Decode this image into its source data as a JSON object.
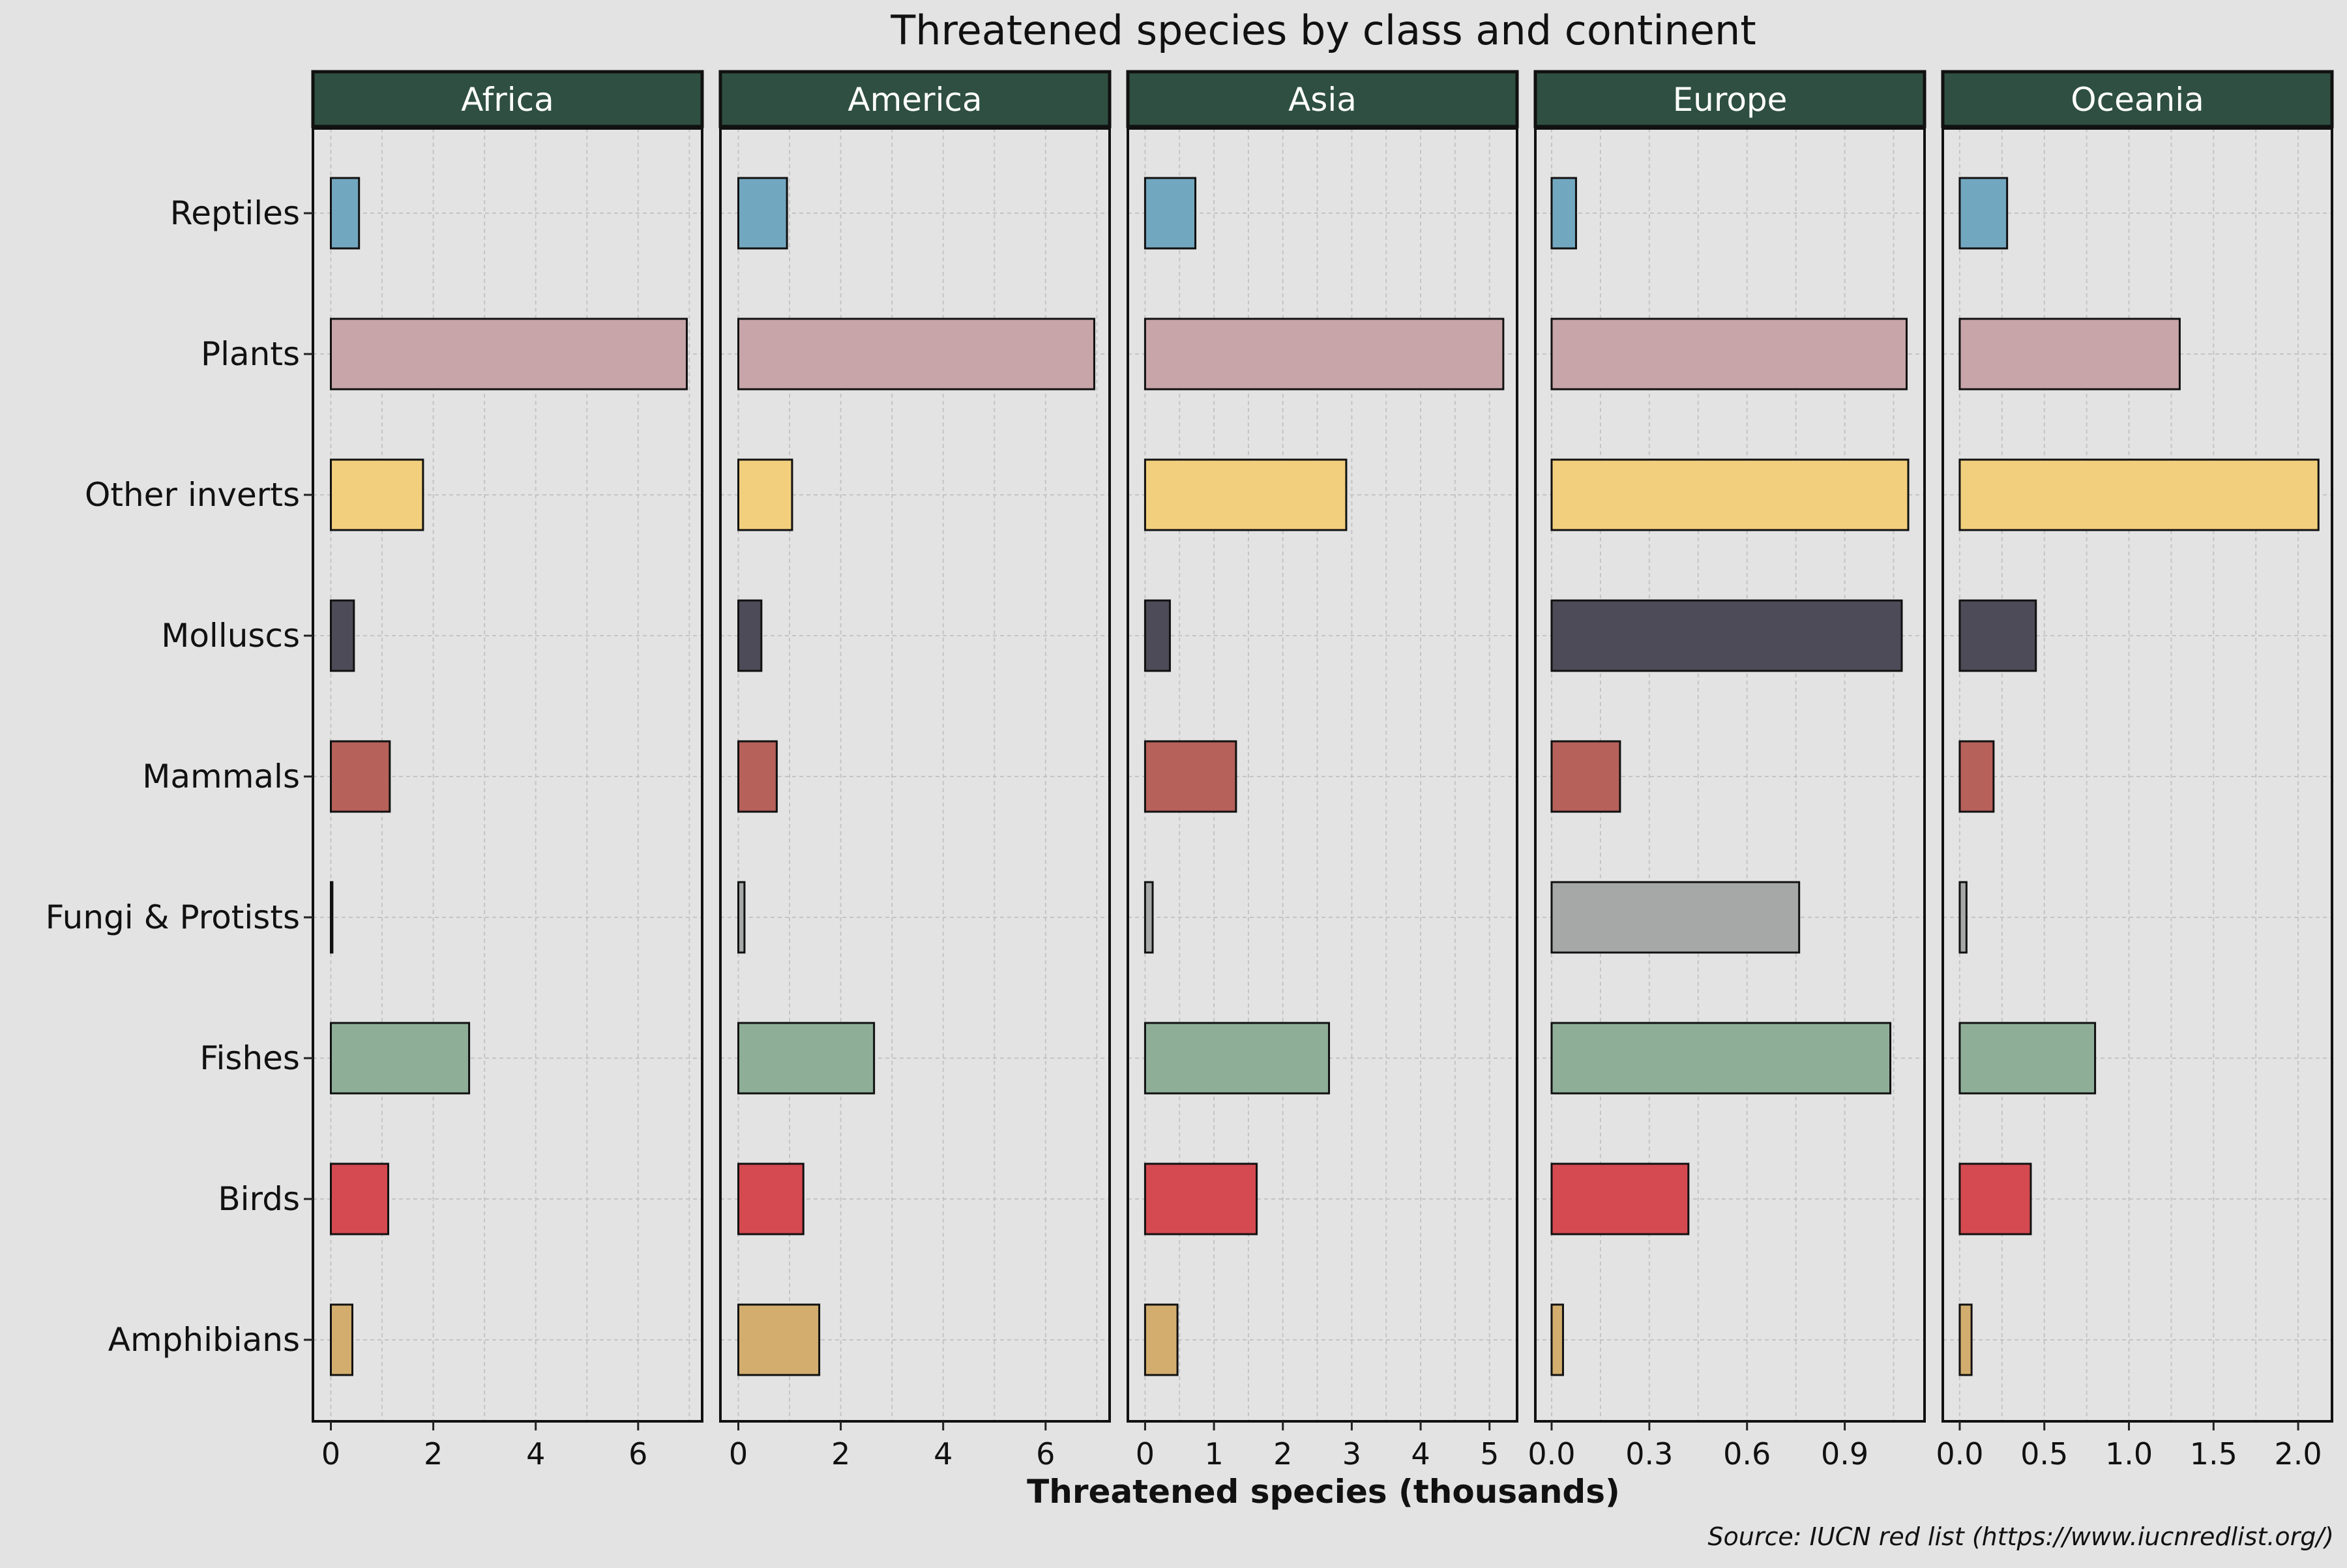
{
  "chart_data": {
    "type": "bar",
    "orientation": "horizontal",
    "facet": "continent",
    "title": "Threatened species by class and continent",
    "xlabel": "Threatened species (thousands)",
    "caption": "Source: IUCN red list (https://www.iucnredlist.org/)",
    "grid": true,
    "categories": [
      "Reptiles",
      "Plants",
      "Other inverts",
      "Molluscs",
      "Mammals",
      "Fungi & Protists",
      "Fishes",
      "Birds",
      "Amphibians"
    ],
    "category_colors": {
      "Reptiles": "#72a7c0",
      "Plants": "#c8a5a8",
      "Other inverts": "#f2cf7d",
      "Molluscs": "#4c4b57",
      "Mammals": "#b6615a",
      "Fungi & Protists": "#a6a8a8",
      "Fishes": "#8eae98",
      "Birds": "#d54a51",
      "Amphibians": "#d3ad6e"
    },
    "strip_color": "#2e4f41",
    "panels": [
      {
        "name": "Africa",
        "xlim": [
          -0.35,
          7.25
        ],
        "ticks": [
          0,
          2,
          4,
          6
        ],
        "tick_labels": [
          "0",
          "2",
          "4",
          "6"
        ],
        "values": [
          0.55,
          6.95,
          1.8,
          0.45,
          1.15,
          0.03,
          2.7,
          1.12,
          0.42
        ]
      },
      {
        "name": "America",
        "xlim": [
          -0.35,
          7.25
        ],
        "ticks": [
          0,
          2,
          4,
          6
        ],
        "tick_labels": [
          "0",
          "2",
          "4",
          "6"
        ],
        "values": [
          0.95,
          6.95,
          1.05,
          0.45,
          0.75,
          0.12,
          2.65,
          1.27,
          1.58
        ]
      },
      {
        "name": "Asia",
        "xlim": [
          -0.25,
          5.4
        ],
        "ticks": [
          0,
          1,
          2,
          3,
          4,
          5
        ],
        "tick_labels": [
          "0",
          "1",
          "2",
          "3",
          "4",
          "5"
        ],
        "values": [
          0.73,
          5.2,
          2.92,
          0.36,
          1.32,
          0.11,
          2.67,
          1.62,
          0.47
        ]
      },
      {
        "name": "Europe",
        "xlim": [
          -0.05,
          1.145
        ],
        "ticks": [
          0,
          0.3,
          0.6,
          0.9
        ],
        "tick_labels": [
          "0.0",
          "0.3",
          "0.6",
          "0.9"
        ],
        "values": [
          0.075,
          1.09,
          1.095,
          1.075,
          0.21,
          0.76,
          1.04,
          0.42,
          0.035
        ]
      },
      {
        "name": "Oceania",
        "xlim": [
          -0.1,
          2.2
        ],
        "ticks": [
          0,
          0.5,
          1.0,
          1.5,
          2.0
        ],
        "tick_labels": [
          "0.0",
          "0.5",
          "1.0",
          "1.5",
          "2.0"
        ],
        "values": [
          0.28,
          1.3,
          2.12,
          0.45,
          0.2,
          0.04,
          0.8,
          0.42,
          0.07
        ]
      }
    ]
  }
}
